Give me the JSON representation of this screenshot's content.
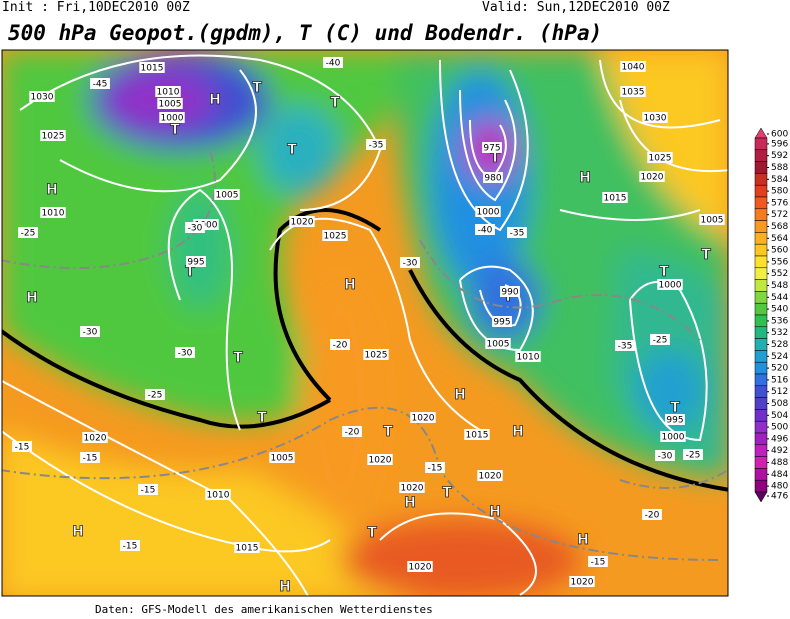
{
  "header": {
    "init": "Init : Fri,10DEC2010 00Z",
    "valid": "Valid: Sun,12DEC2010 00Z",
    "title": "500 hPa Geopot.(gpdm), T (C) und Bodendr. (hPa)"
  },
  "footer": "Daten: GFS-Modell des amerikanischen Wetterdienstes",
  "colorbar": {
    "ticks": [
      600,
      596,
      592,
      588,
      584,
      580,
      576,
      572,
      568,
      564,
      560,
      556,
      552,
      548,
      544,
      540,
      536,
      532,
      528,
      524,
      520,
      516,
      512,
      508,
      504,
      500,
      496,
      492,
      488,
      484,
      480,
      476
    ],
    "colors": [
      "#e0406f",
      "#c8285a",
      "#b01e40",
      "#a01830",
      "#c83020",
      "#e04020",
      "#f05a20",
      "#f57a20",
      "#f89a20",
      "#fab020",
      "#fcc820",
      "#fde030",
      "#f0f040",
      "#c0e840",
      "#80d840",
      "#50c840",
      "#30c050",
      "#20b880",
      "#20b0b0",
      "#20a0d0",
      "#2090e0",
      "#3070e0",
      "#4050d0",
      "#5040c8",
      "#7030c8",
      "#9030c8",
      "#a020c0",
      "#c020c0",
      "#d020b0",
      "#b010a0",
      "#900080",
      "#600060"
    ]
  },
  "centers": [
    "H",
    "H",
    "H",
    "H",
    "H",
    "H",
    "H",
    "H",
    "H",
    "H",
    "H",
    "H",
    "T",
    "T",
    "T",
    "T",
    "T",
    "T",
    "T",
    "T",
    "T",
    "T",
    "T",
    "T",
    "T",
    "T",
    "T"
  ],
  "isobar_labels": [
    "1015",
    "1010",
    "1005",
    "1000",
    "1030",
    "1025",
    "1010",
    "1005",
    "1000",
    "995",
    "1020",
    "1025",
    "1025",
    "1020",
    "1015",
    "1020",
    "1020",
    "1020",
    "1020",
    "1020",
    "1010",
    "1015",
    "1020",
    "1005",
    "1040",
    "1035",
    "1030",
    "1025",
    "1020",
    "1015",
    "1005",
    "1000",
    "995",
    "1000",
    "975",
    "980",
    "1000",
    "990",
    "995",
    "1005",
    "1010"
  ],
  "temperature_labels": [
    "-45",
    "-40",
    "-35",
    "-30",
    "-30",
    "-30",
    "-25",
    "-25",
    "-20",
    "-20",
    "-15",
    "-15",
    "-15",
    "-15",
    "-15",
    "-15",
    "-20",
    "-25",
    "-30",
    "-35",
    "-25",
    "-40",
    "-35",
    "-30"
  ]
}
